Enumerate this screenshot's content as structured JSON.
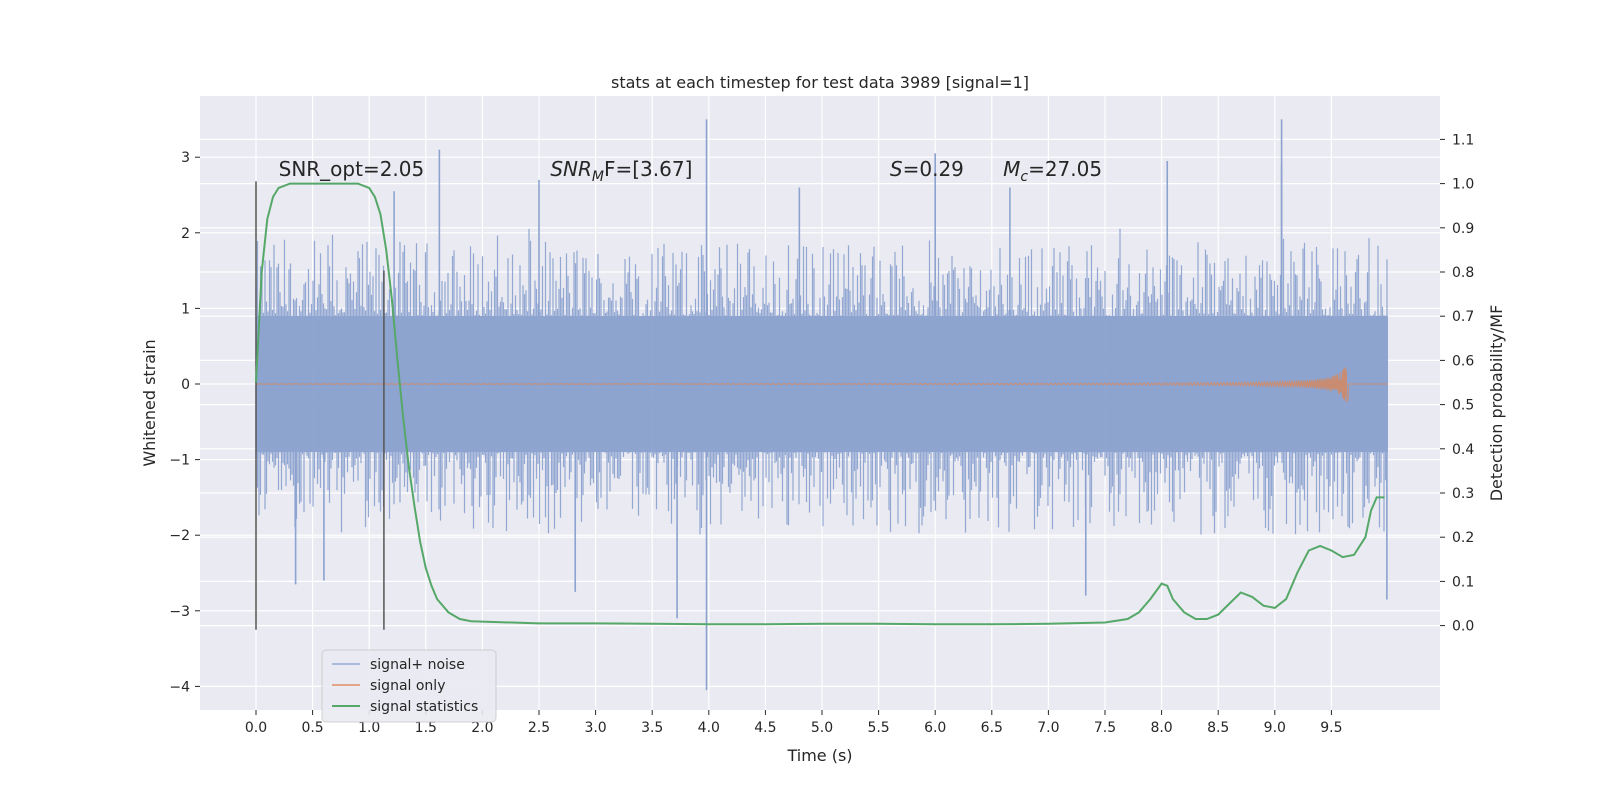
{
  "chart_data": {
    "type": "line",
    "title": "stats at each timestep for test data 3989 [signal=1]",
    "xlabel": "Time (s)",
    "ylabel": "Whitened strain",
    "y2label": "Detection probability/MF",
    "xlim": [
      -0.5,
      10.5
    ],
    "ylim": [
      -4.4,
      3.8
    ],
    "y2lim": [
      -0.195,
      1.2
    ],
    "grid": true,
    "legend_position": "lower-left",
    "xticks": [
      0.0,
      0.5,
      1.0,
      1.5,
      2.0,
      2.5,
      3.0,
      3.5,
      4.0,
      4.5,
      5.0,
      5.5,
      6.0,
      6.5,
      7.0,
      7.5,
      8.0,
      8.5,
      9.0,
      9.5
    ],
    "xtick_labels": [
      "0.0",
      "0.5",
      "1.0",
      "1.5",
      "2.0",
      "2.5",
      "3.0",
      "3.5",
      "4.0",
      "4.5",
      "5.0",
      "5.5",
      "6.0",
      "6.5",
      "7.0",
      "7.5",
      "8.0",
      "8.5",
      "9.0",
      "9.5"
    ],
    "yticks": [
      3,
      2,
      1,
      0,
      -1,
      -2,
      -3,
      -4
    ],
    "ytick_labels": [
      "3",
      "2",
      "1",
      "0",
      "−1",
      "−2",
      "−3",
      "−4"
    ],
    "y2ticks": [
      1.1,
      1.0,
      0.9,
      0.8,
      0.7,
      0.6,
      0.5,
      0.4,
      0.3,
      0.2,
      0.1,
      0.0
    ],
    "y2tick_labels": [
      "1.1",
      "1.0",
      "0.9",
      "0.8",
      "0.7",
      "0.6",
      "0.5",
      "0.4",
      "0.3",
      "0.2",
      "0.1",
      "0.0"
    ],
    "annotations": [
      {
        "text": "SNR_opt=2.05",
        "x": 0.2,
        "y": 2.75
      },
      {
        "main": "SNR",
        "sub": "M",
        "tail": "F=[3.67]",
        "x": 2.6,
        "y": 2.75
      },
      {
        "main": "S",
        "sub": "",
        "tail": "=0.29",
        "x": 5.6,
        "y": 2.75
      },
      {
        "main": "M",
        "sub": "c",
        "tail": "=27.05",
        "x": 6.6,
        "y": 2.75
      }
    ],
    "vlines": [
      {
        "x": 0.0,
        "ymin": -3.25,
        "ymax": 2.68
      },
      {
        "x": 1.13,
        "ymin": -3.25,
        "ymax": 1.5
      }
    ],
    "series": [
      {
        "name": "signal+ noise",
        "color": "#8da3cf",
        "kind": "noise",
        "x_range": [
          0.0,
          10.0
        ],
        "band": [
          -0.9,
          0.9
        ],
        "typical_peak": 1.9,
        "spikes": [
          {
            "x": 3.98,
            "y": 3.5
          },
          {
            "x": 3.98,
            "y": -4.05
          },
          {
            "x": 9.06,
            "y": 3.5
          },
          {
            "x": 1.62,
            "y": 3.1
          },
          {
            "x": 9.06,
            "y": 2.9
          },
          {
            "x": 8.05,
            "y": 2.95
          },
          {
            "x": 6.0,
            "y": 3.05
          },
          {
            "x": 3.72,
            "y": -3.1
          },
          {
            "x": 9.99,
            "y": -2.85
          },
          {
            "x": 2.5,
            "y": 2.7
          },
          {
            "x": 6.66,
            "y": 2.6
          },
          {
            "x": 4.8,
            "y": 2.6
          },
          {
            "x": 0.6,
            "y": -2.6
          },
          {
            "x": 1.22,
            "y": 2.55
          },
          {
            "x": 7.33,
            "y": -2.8
          },
          {
            "x": 2.82,
            "y": -2.75
          },
          {
            "x": 0.35,
            "y": -2.65
          }
        ]
      },
      {
        "name": "signal only",
        "color": "#dd8452",
        "kind": "chirp",
        "x_range": [
          0.0,
          9.65
        ],
        "peak_amplitude": 0.35
      },
      {
        "name": "signal statistics",
        "color": "#55a868",
        "axis": "right",
        "x": [
          0.0,
          0.05,
          0.1,
          0.15,
          0.2,
          0.3,
          0.5,
          0.7,
          0.9,
          1.0,
          1.05,
          1.1,
          1.15,
          1.2,
          1.25,
          1.3,
          1.35,
          1.4,
          1.45,
          1.5,
          1.55,
          1.6,
          1.7,
          1.8,
          1.9,
          2.0,
          2.5,
          3.0,
          3.5,
          4.0,
          4.5,
          5.0,
          5.5,
          6.0,
          6.5,
          7.0,
          7.5,
          7.7,
          7.8,
          7.9,
          8.0,
          8.05,
          8.1,
          8.2,
          8.3,
          8.4,
          8.5,
          8.6,
          8.7,
          8.8,
          8.9,
          9.0,
          9.1,
          9.2,
          9.3,
          9.4,
          9.5,
          9.6,
          9.7,
          9.8,
          9.85,
          9.9,
          9.97
        ],
        "values": [
          0.55,
          0.8,
          0.92,
          0.97,
          0.99,
          1.0,
          1.0,
          1.0,
          1.0,
          0.99,
          0.97,
          0.93,
          0.85,
          0.74,
          0.6,
          0.47,
          0.36,
          0.27,
          0.19,
          0.13,
          0.09,
          0.06,
          0.03,
          0.015,
          0.01,
          0.009,
          0.005,
          0.005,
          0.004,
          0.003,
          0.003,
          0.004,
          0.004,
          0.003,
          0.003,
          0.004,
          0.007,
          0.015,
          0.03,
          0.06,
          0.095,
          0.09,
          0.06,
          0.03,
          0.015,
          0.015,
          0.025,
          0.05,
          0.075,
          0.065,
          0.045,
          0.04,
          0.06,
          0.12,
          0.17,
          0.18,
          0.17,
          0.155,
          0.16,
          0.2,
          0.26,
          0.29,
          0.29
        ]
      }
    ]
  }
}
